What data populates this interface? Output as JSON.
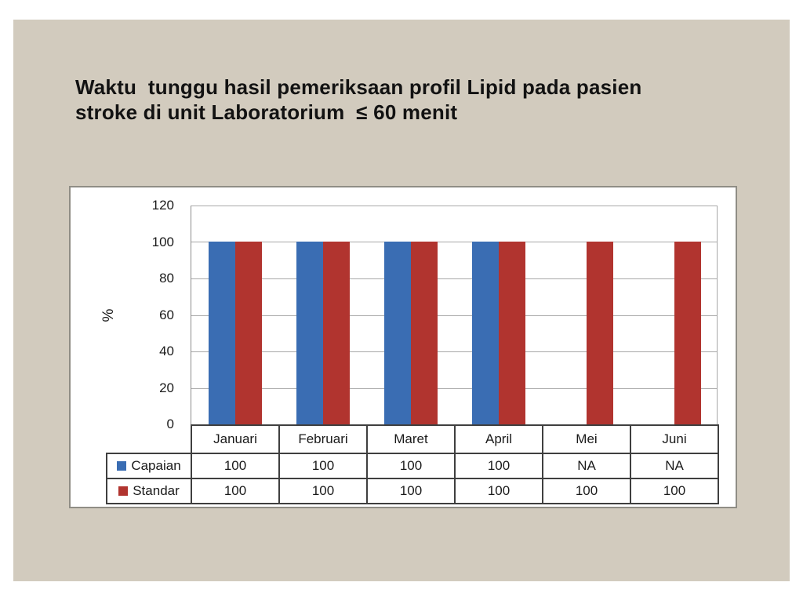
{
  "slide": {
    "title_line1": "Waktu  tunggu hasil pemeriksaan profil Lipid pada pasien",
    "title_line2": "stroke di unit Laboratorium  ≤ 60 menit"
  },
  "colors": {
    "page_bg": "#ffffff",
    "slide_bg": "#d2cbbe",
    "panel_border": "#8f8d85",
    "gridline": "#a8a8a8",
    "axis_line": "#8c8c8c",
    "table_border": "#3f3f3f",
    "text": "#1a1a1a",
    "capaian_blue": "#3a6db3",
    "standar_red": "#b1342f"
  },
  "chart_data": {
    "type": "bar",
    "title": "",
    "categories": [
      "Januari",
      "Februari",
      "Maret",
      "April",
      "Mei",
      "Juni"
    ],
    "series": [
      {
        "name": "Capaian",
        "color": "#3a6db3",
        "values": [
          100,
          100,
          100,
          100,
          null,
          null
        ],
        "display": [
          "100",
          "100",
          "100",
          "100",
          "NA",
          "NA"
        ]
      },
      {
        "name": "Standar",
        "color": "#b1342f",
        "values": [
          100,
          100,
          100,
          100,
          100,
          100
        ],
        "display": [
          "100",
          "100",
          "100",
          "100",
          "100",
          "100"
        ]
      }
    ],
    "xlabel": "",
    "ylabel": "%",
    "ylim": [
      0,
      120
    ],
    "yticks": [
      0,
      20,
      40,
      60,
      80,
      100,
      120
    ],
    "grid": true,
    "legend_position": "table-left",
    "data_table_shown": true
  }
}
